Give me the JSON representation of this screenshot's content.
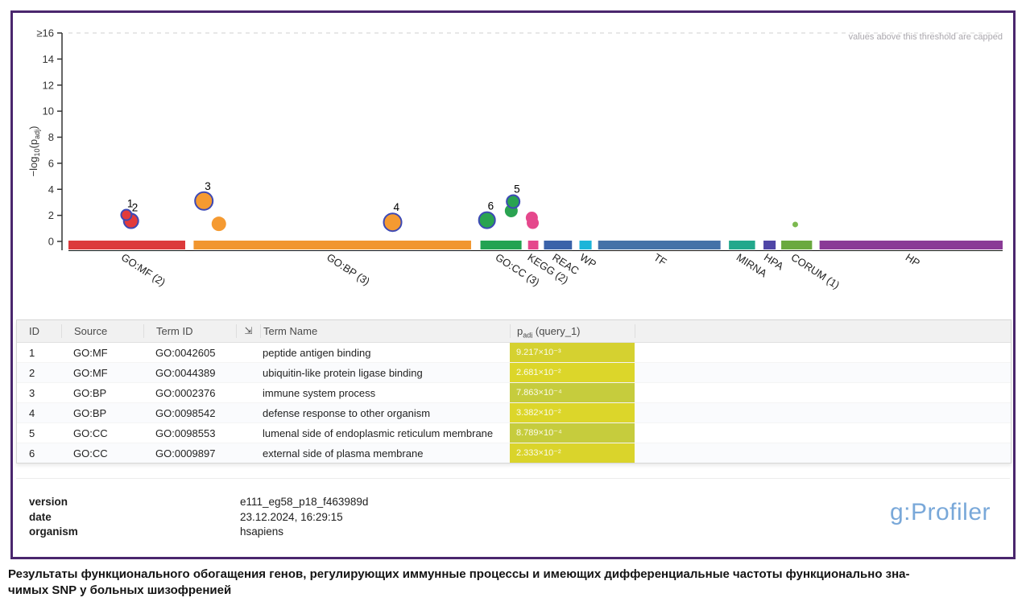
{
  "frame": {
    "border_color": "#4a266d"
  },
  "chart_data": {
    "type": "scatter",
    "title": "g:Profiler Manhattan enrichment plot",
    "ylabel_parts": [
      "−log",
      "10",
      "(p",
      "adj",
      ")"
    ],
    "ylim": [
      0,
      16
    ],
    "yticks": [
      0,
      2,
      4,
      6,
      8,
      10,
      12,
      14,
      16
    ],
    "ytick_top_label": "≥16",
    "threshold_note": "values above this threshold are capped",
    "threshold_line_y": 16,
    "grid": false,
    "outline_color": "#3d49b5",
    "sources": [
      {
        "label": "GO:MF (2)",
        "color": "#dc3a3b",
        "start": 0.0,
        "end": 0.125
      },
      {
        "label": "GO:BP (3)",
        "color": "#f1962f",
        "start": 0.134,
        "end": 0.431
      },
      {
        "label": "GO:CC (3)",
        "color": "#23a352",
        "start": 0.441,
        "end": 0.485
      },
      {
        "label": "KEGG (2)",
        "color": "#e5488c",
        "start": 0.492,
        "end": 0.503
      },
      {
        "label": "REAC",
        "color": "#3a62a9",
        "start": 0.509,
        "end": 0.539
      },
      {
        "label": "WP",
        "color": "#1cb5d9",
        "start": 0.547,
        "end": 0.56
      },
      {
        "label": "TF",
        "color": "#4472a8",
        "start": 0.567,
        "end": 0.698
      },
      {
        "label": "MIRNA",
        "color": "#22a88c",
        "start": 0.707,
        "end": 0.735
      },
      {
        "label": "HPA",
        "color": "#4f46a6",
        "start": 0.744,
        "end": 0.757
      },
      {
        "label": "CORUM (1)",
        "color": "#6aa93f",
        "start": 0.763,
        "end": 0.796
      },
      {
        "label": "HP",
        "color": "#8a3a96",
        "start": 0.804,
        "end": 1.0
      }
    ],
    "points": [
      {
        "label": "2",
        "source": "GO:MF",
        "x": 0.067,
        "y": 1.572,
        "r": 9,
        "color": "#e23b3b",
        "outlined": true
      },
      {
        "label": "1",
        "source": "GO:MF",
        "x": 0.062,
        "y": 2.035,
        "r": 6.5,
        "color": "#e23b3b",
        "outlined": true
      },
      {
        "label": "3",
        "source": "GO:BP",
        "x": 0.145,
        "y": 3.104,
        "r": 11,
        "color": "#f59a31",
        "outlined": true
      },
      {
        "label": "",
        "source": "GO:BP",
        "x": 0.161,
        "y": 1.35,
        "r": 9,
        "color": "#f59a31",
        "outlined": false
      },
      {
        "label": "4",
        "source": "GO:BP",
        "x": 0.347,
        "y": 1.471,
        "r": 11,
        "color": "#f59a31",
        "outlined": true
      },
      {
        "label": "6",
        "source": "GO:CC",
        "x": 0.448,
        "y": 1.632,
        "r": 10,
        "color": "#2aa351",
        "outlined": true
      },
      {
        "label": "",
        "source": "GO:CC",
        "x": 0.474,
        "y": 2.35,
        "r": 8,
        "color": "#2aa351",
        "outlined": false
      },
      {
        "label": "5",
        "source": "GO:CC",
        "x": 0.476,
        "y": 3.056,
        "r": 8,
        "color": "#2aa351",
        "outlined": true
      },
      {
        "label": "",
        "source": "KEGG",
        "x": 0.496,
        "y": 1.82,
        "r": 7.5,
        "color": "#e5488c",
        "outlined": false
      },
      {
        "label": "",
        "source": "KEGG",
        "x": 0.497,
        "y": 1.42,
        "r": 7.5,
        "color": "#e5488c",
        "outlined": false
      },
      {
        "label": "",
        "source": "CORUM",
        "x": 0.778,
        "y": 1.3,
        "r": 3.5,
        "color": "#7cb94f",
        "outlined": false
      }
    ]
  },
  "table": {
    "columns": [
      "ID",
      "Source",
      "Term ID",
      "",
      "Term Name"
    ],
    "padj_header": {
      "base": "p",
      "sub": "adj",
      "rest": " (query_1)"
    },
    "term_icon": {
      "glyph": "⇲"
    },
    "rows": [
      {
        "id": "1",
        "source": "GO:MF",
        "term_id": "GO:0042605",
        "term_name": "peptide antigen binding",
        "padj": "9.217×10⁻³",
        "cell_color": "#d5d130"
      },
      {
        "id": "2",
        "source": "GO:MF",
        "term_id": "GO:0044389",
        "term_name": "ubiquitin-like protein ligase binding",
        "padj": "2.681×10⁻²",
        "cell_color": "#dcd62a"
      },
      {
        "id": "3",
        "source": "GO:BP",
        "term_id": "GO:0002376",
        "term_name": "immune system process",
        "padj": "7.863×10⁻⁴",
        "cell_color": "#c6cc3d"
      },
      {
        "id": "4",
        "source": "GO:BP",
        "term_id": "GO:0098542",
        "term_name": "defense response to other organism",
        "padj": "3.382×10⁻²",
        "cell_color": "#dcd62a"
      },
      {
        "id": "5",
        "source": "GO:CC",
        "term_id": "GO:0098553",
        "term_name": "lumenal side of endoplasmic reticulum membrane",
        "padj": "8.789×10⁻⁴",
        "cell_color": "#c6cc3d"
      },
      {
        "id": "6",
        "source": "GO:CC",
        "term_id": "GO:0009897",
        "term_name": "external side of plasma membrane",
        "padj": "2.333×10⁻²",
        "cell_color": "#dad42b"
      }
    ]
  },
  "footer": {
    "fields": [
      {
        "label": "version",
        "value": "e111_eg58_p18_f463989d"
      },
      {
        "label": "date",
        "value": "23.12.2024, 16:29:15"
      },
      {
        "label": "organism",
        "value": "hsapiens"
      }
    ],
    "logo": "g:Profiler",
    "logo_color": "#79a8d9"
  },
  "caption": {
    "line1": "Результаты функционального обогащения генов, регулирующих иммунные процессы и имеющих дифференциальные частоты функционально зна-",
    "line2": "чимых SNP у больных шизофренией"
  }
}
